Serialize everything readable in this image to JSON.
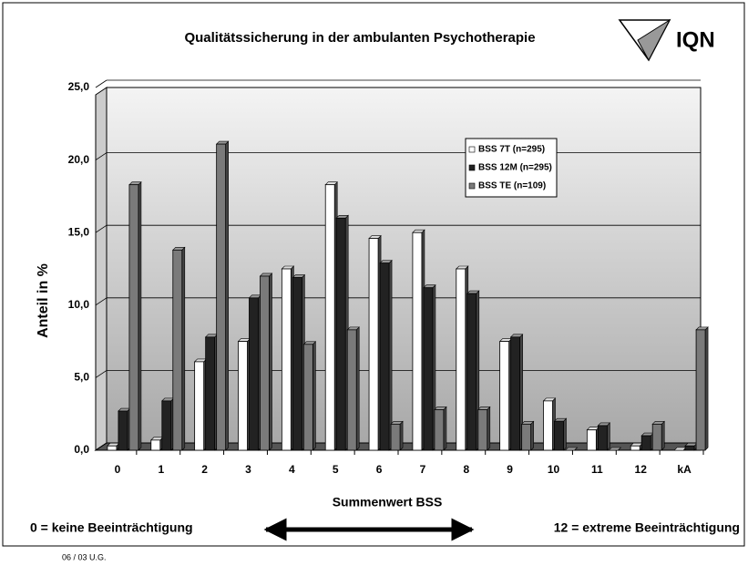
{
  "chart_data": {
    "type": "bar",
    "title": "Qualitätssicherung in der ambulanten Psychotherapie",
    "logo": "IQN",
    "y_label": "Anteil in %",
    "x_label": "Summenwert BSS",
    "left_annotation": "0 = keine Beeinträchtigung",
    "right_annotation": "12 = extreme Beeinträchtigung",
    "footer": "06 / 03 U.G.",
    "categories": [
      "0",
      "1",
      "2",
      "3",
      "4",
      "5",
      "6",
      "7",
      "8",
      "9",
      "10",
      "11",
      "12",
      "kA"
    ],
    "series": [
      {
        "name": "BSS 7T (n=295)",
        "color": "#ffffff",
        "values": [
          0.3,
          0.7,
          6.1,
          7.5,
          12.5,
          18.3,
          14.6,
          15.0,
          12.5,
          7.5,
          3.4,
          1.4,
          0.3,
          0
        ]
      },
      {
        "name": "BSS 12M (n=295)",
        "color": "#222222",
        "values": [
          2.7,
          3.4,
          7.8,
          10.5,
          11.9,
          16.0,
          12.9,
          11.2,
          10.8,
          7.8,
          2.0,
          1.7,
          1.0,
          0.3
        ]
      },
      {
        "name": "BSS TE (n=109)",
        "color": "#7a7a7a",
        "values": [
          18.3,
          13.8,
          21.1,
          12.0,
          7.3,
          8.3,
          1.8,
          2.8,
          2.8,
          1.8,
          0,
          0,
          1.8,
          8.3
        ]
      }
    ],
    "ylim": [
      0,
      25
    ],
    "yticks": [
      {
        "value": 0,
        "label": "0,0"
      },
      {
        "value": 5,
        "label": "5,0"
      },
      {
        "value": 10,
        "label": "10,0"
      },
      {
        "value": 15,
        "label": "15,0"
      },
      {
        "value": 20,
        "label": "20,0"
      },
      {
        "value": 25,
        "label": "25,0"
      }
    ],
    "grid": true
  }
}
